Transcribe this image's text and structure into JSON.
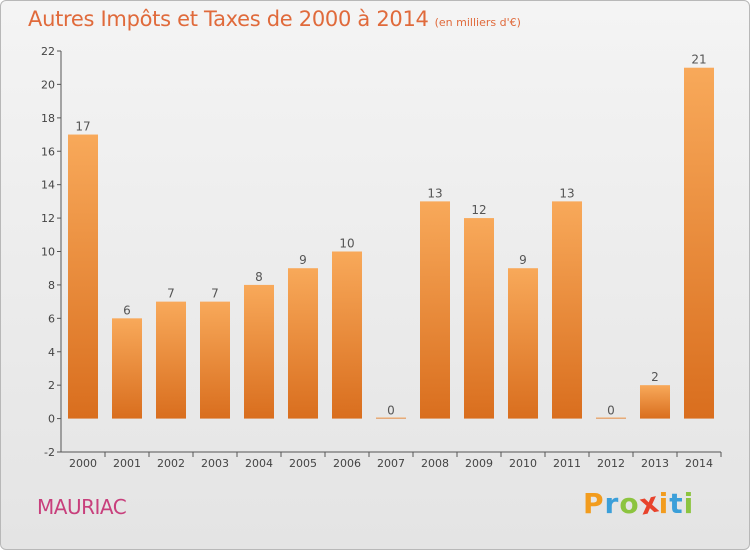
{
  "title": "Autres Impôts et Taxes de 2000 à 2014",
  "subtitle": "(en milliers d'€)",
  "location": "MAURIAC",
  "logo": {
    "text": "Proxiti",
    "letters": [
      {
        "ch": "P",
        "color": "#f29c1e"
      },
      {
        "ch": "r",
        "color": "#3b9fd9"
      },
      {
        "ch": "o",
        "color": "#8cc43f"
      },
      {
        "ch": "x",
        "color": "#e8432c"
      },
      {
        "ch": "i",
        "color": "#f29c1e"
      },
      {
        "ch": "t",
        "color": "#3b9fd9"
      },
      {
        "ch": "i",
        "color": "#8cc43f"
      }
    ]
  },
  "colors": {
    "title": "#e06a3b",
    "location": "#c83f7c",
    "bar_light": "#f8a95a",
    "bar_dark": "#d96e1e",
    "axis": "#555555"
  },
  "chart_data": {
    "type": "bar",
    "categories": [
      "2000",
      "2001",
      "2002",
      "2003",
      "2004",
      "2005",
      "2006",
      "2007",
      "2008",
      "2009",
      "2010",
      "2011",
      "2012",
      "2013",
      "2014"
    ],
    "values": [
      17,
      6,
      7,
      7,
      8,
      9,
      10,
      0,
      13,
      12,
      9,
      13,
      0,
      2,
      21
    ],
    "data_labels": [
      "17",
      "6",
      "7",
      "7",
      "8",
      "9",
      "10",
      "0",
      "13",
      "12",
      "9",
      "13",
      "0",
      "2",
      "21"
    ],
    "ylim": [
      -2,
      22
    ],
    "yticks": [
      -2,
      0,
      2,
      4,
      6,
      8,
      10,
      12,
      14,
      16,
      18,
      20,
      22
    ],
    "grid": false,
    "legend": "none"
  }
}
